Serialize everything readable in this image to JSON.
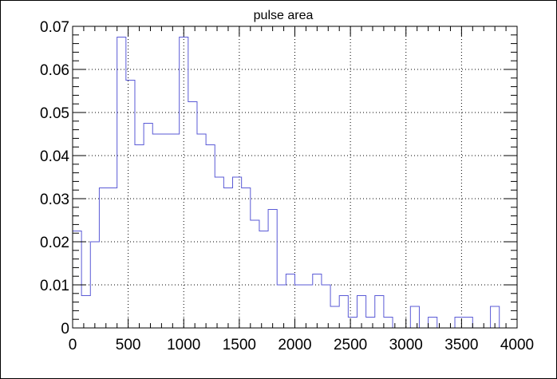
{
  "chart_data": {
    "type": "histogram",
    "title": "pulse area",
    "xlabel": "",
    "ylabel": "",
    "xlim": [
      0,
      4000
    ],
    "ylim": [
      0,
      0.07
    ],
    "grid": true,
    "bin_width": 80,
    "bins": [
      {
        "x0": 0,
        "x1": 80,
        "y": 0.0225
      },
      {
        "x0": 80,
        "x1": 160,
        "y": 0.0075
      },
      {
        "x0": 160,
        "x1": 240,
        "y": 0.02
      },
      {
        "x0": 240,
        "x1": 400,
        "y": 0.0325
      },
      {
        "x0": 400,
        "x1": 480,
        "y": 0.0675
      },
      {
        "x0": 480,
        "x1": 560,
        "y": 0.0575
      },
      {
        "x0": 560,
        "x1": 640,
        "y": 0.0425
      },
      {
        "x0": 640,
        "x1": 720,
        "y": 0.0475
      },
      {
        "x0": 720,
        "x1": 960,
        "y": 0.045
      },
      {
        "x0": 960,
        "x1": 1040,
        "y": 0.0675
      },
      {
        "x0": 1040,
        "x1": 1120,
        "y": 0.0525
      },
      {
        "x0": 1120,
        "x1": 1200,
        "y": 0.045
      },
      {
        "x0": 1200,
        "x1": 1280,
        "y": 0.0425
      },
      {
        "x0": 1280,
        "x1": 1360,
        "y": 0.035
      },
      {
        "x0": 1360,
        "x1": 1440,
        "y": 0.0325
      },
      {
        "x0": 1440,
        "x1": 1520,
        "y": 0.035
      },
      {
        "x0": 1520,
        "x1": 1600,
        "y": 0.0325
      },
      {
        "x0": 1600,
        "x1": 1680,
        "y": 0.025
      },
      {
        "x0": 1680,
        "x1": 1760,
        "y": 0.0225
      },
      {
        "x0": 1760,
        "x1": 1840,
        "y": 0.0275
      },
      {
        "x0": 1840,
        "x1": 1920,
        "y": 0.01
      },
      {
        "x0": 1920,
        "x1": 2000,
        "y": 0.0125
      },
      {
        "x0": 2000,
        "x1": 2160,
        "y": 0.01
      },
      {
        "x0": 2160,
        "x1": 2240,
        "y": 0.0125
      },
      {
        "x0": 2240,
        "x1": 2320,
        "y": 0.01
      },
      {
        "x0": 2320,
        "x1": 2400,
        "y": 0.005
      },
      {
        "x0": 2400,
        "x1": 2480,
        "y": 0.0075
      },
      {
        "x0": 2480,
        "x1": 2560,
        "y": 0.0025
      },
      {
        "x0": 2560,
        "x1": 2640,
        "y": 0.0075
      },
      {
        "x0": 2640,
        "x1": 2720,
        "y": 0.0025
      },
      {
        "x0": 2720,
        "x1": 2800,
        "y": 0.0075
      },
      {
        "x0": 2800,
        "x1": 2880,
        "y": 0.0025
      },
      {
        "x0": 2880,
        "x1": 3040,
        "y": 0
      },
      {
        "x0": 3040,
        "x1": 3120,
        "y": 0.005
      },
      {
        "x0": 3120,
        "x1": 3200,
        "y": 0
      },
      {
        "x0": 3200,
        "x1": 3280,
        "y": 0.0025
      },
      {
        "x0": 3280,
        "x1": 3440,
        "y": 0
      },
      {
        "x0": 3440,
        "x1": 3600,
        "y": 0.0025
      },
      {
        "x0": 3600,
        "x1": 3760,
        "y": 0
      },
      {
        "x0": 3760,
        "x1": 3840,
        "y": 0.005
      },
      {
        "x0": 3840,
        "x1": 4000,
        "y": 0
      }
    ],
    "x_ticks": [
      "0",
      "500",
      "1000",
      "1500",
      "2000",
      "2500",
      "3000",
      "3500",
      "4000"
    ],
    "y_ticks": [
      "0",
      "0.01",
      "0.02",
      "0.03",
      "0.04",
      "0.05",
      "0.06",
      "0.07"
    ],
    "colors": {
      "line": "#5a5ad6",
      "axis": "#000000",
      "grid": "#000000",
      "background": "#ffffff"
    }
  }
}
